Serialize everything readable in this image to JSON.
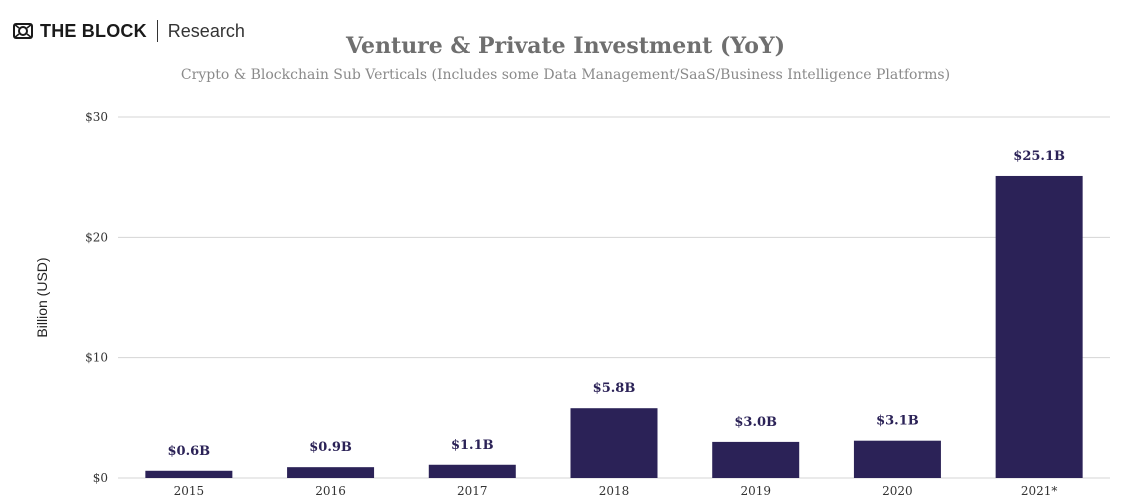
{
  "brand": {
    "name": "THE BLOCK",
    "sub": "Research"
  },
  "chart_data": {
    "type": "bar",
    "title": "Venture & Private Investment (YoY)",
    "subtitle": "Crypto & Blockchain Sub Verticals (Includes some Data Management/SaaS/Business Intelligence Platforms)",
    "ylabel": "Billion (USD)",
    "xlabel": "",
    "categories": [
      "2015",
      "2016",
      "2017",
      "2018",
      "2019",
      "2020",
      "2021*"
    ],
    "values": [
      0.6,
      0.9,
      1.1,
      5.8,
      3.0,
      3.1,
      25.1
    ],
    "data_labels": [
      "$0.6B",
      "$0.9B",
      "$1.1B",
      "$5.8B",
      "$3.0B",
      "$3.1B",
      "$25.1B"
    ],
    "yticks": [
      0,
      10,
      20,
      30
    ],
    "ytick_labels": [
      "$0",
      "$10",
      "$20",
      "$30"
    ],
    "ylim": [
      0,
      30
    ],
    "grid": true,
    "legend": "none",
    "colors": {
      "bar": "#2b2257",
      "label": "#2b2257",
      "grid": "#d5d5d5",
      "tick": "#333333"
    }
  }
}
